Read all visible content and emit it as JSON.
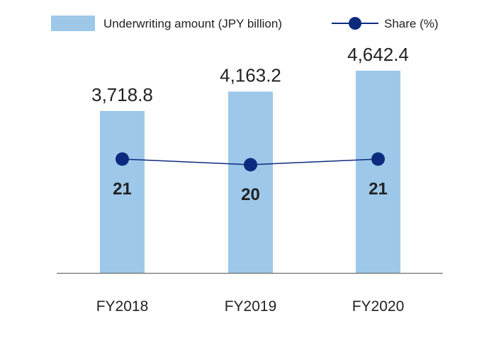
{
  "chart_data": {
    "type": "bar",
    "title": "",
    "xlabel": "",
    "ylabel": "",
    "categories": [
      "FY2018",
      "FY2019",
      "FY2020"
    ],
    "series": [
      {
        "name": "Underwriting amount (JPY billion)",
        "type": "bar",
        "values": [
          3718.8,
          4163.2,
          4642.4
        ],
        "labels": [
          "3,718.8",
          "4,163.2",
          "4,642.4"
        ],
        "color": "#9dc8ea"
      },
      {
        "name": "Share (%)",
        "type": "line",
        "values": [
          21,
          20,
          21
        ],
        "labels": [
          "21",
          "20",
          "21"
        ],
        "color": "#0d2b7e"
      }
    ],
    "ylim": [
      0,
      5000
    ],
    "grid": false,
    "legend": "top"
  }
}
